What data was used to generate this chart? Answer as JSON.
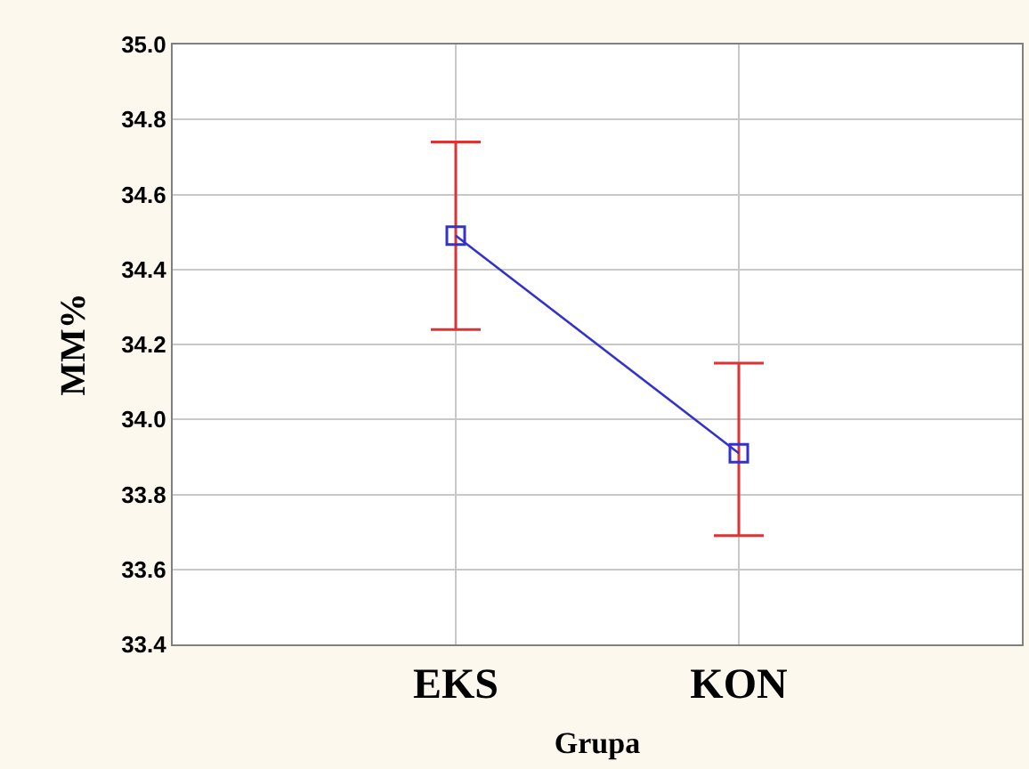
{
  "chart_data": {
    "type": "line",
    "xlabel": "Grupa",
    "ylabel": "MM%",
    "categories": [
      "EKS",
      "KON"
    ],
    "series": [
      {
        "color": "#3333cc",
        "values": [
          34.49,
          33.91
        ],
        "errors": [
          [
            34.24,
            34.74
          ],
          [
            33.69,
            34.15
          ]
        ]
      }
    ],
    "ylim": [
      33.4,
      35.0
    ],
    "yticks": [
      33.4,
      33.6,
      33.8,
      {
        "value": 34.0,
        "label": "34.0"
      },
      34.2,
      34.4,
      34.6,
      34.8,
      {
        "value": 35.0,
        "label": "35.0"
      }
    ],
    "grid": true,
    "marker": "square",
    "line_style": "solid"
  }
}
